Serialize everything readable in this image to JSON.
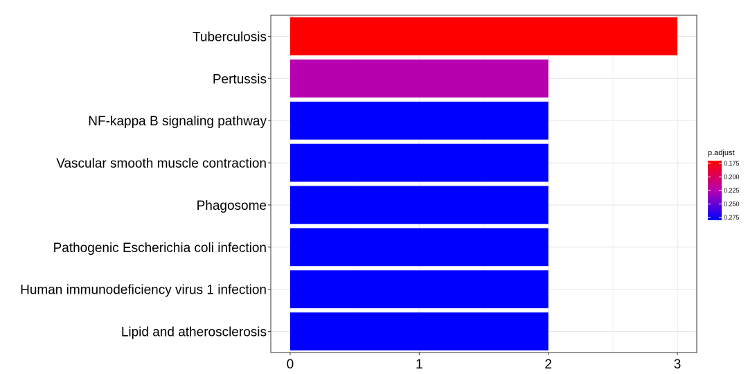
{
  "chart_data": {
    "type": "bar",
    "orientation": "horizontal",
    "categories": [
      "Tuberculosis",
      "Pertussis",
      "NF-kappa B signaling pathway",
      "Vascular smooth muscle contraction",
      "Phagosome",
      "Pathogenic Escherichia coli infection",
      "Human immunodeficiency virus 1 infection",
      "Lipid and atherosclerosis"
    ],
    "values": [
      3,
      2,
      2,
      2,
      2,
      2,
      2,
      2
    ],
    "color_values": [
      0.17,
      0.225,
      0.28,
      0.28,
      0.28,
      0.28,
      0.28,
      0.28
    ],
    "xlim": [
      -0.15,
      3.15
    ],
    "xticks": [
      0,
      1,
      2,
      3
    ],
    "xtick_labels": [
      "0",
      "1",
      "2",
      "3"
    ],
    "grid": true,
    "legend": {
      "title": "p.adjust",
      "placement": "right",
      "ticks": [
        0.175,
        0.2,
        0.225,
        0.25,
        0.275
      ],
      "tick_labels": [
        "0.175",
        "0.200",
        "0.225",
        "0.250",
        "0.275"
      ],
      "range": [
        0.17,
        0.28
      ],
      "color_low": "#FF0000",
      "color_high": "#0000FF"
    }
  }
}
